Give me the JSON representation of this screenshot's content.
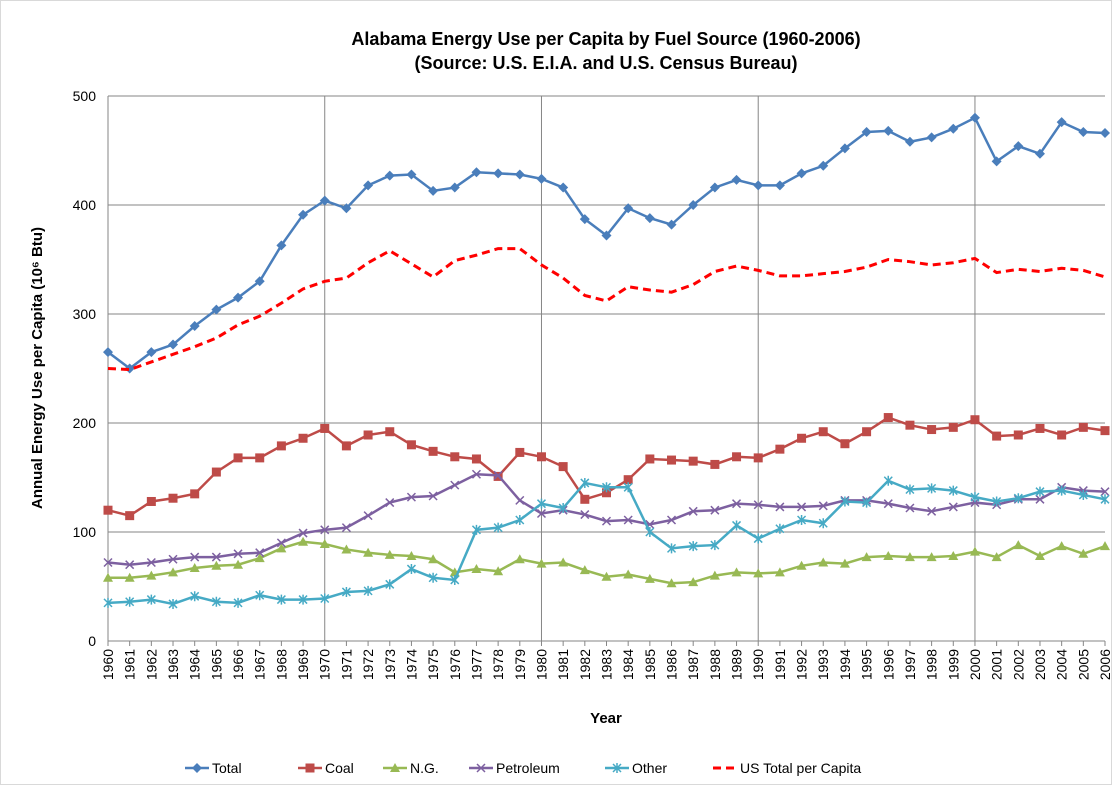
{
  "chart_data": {
    "type": "line",
    "title": [
      "Alabama Energy Use per Capita by Fuel Source (1960-2006)",
      "(Source: U.S. E.I.A. and U.S. Census Bureau)"
    ],
    "x_label": "Year",
    "y_label": "Annual Energy Use per Capita (10⁶ Btu)",
    "categories": [
      "1960",
      "1961",
      "1962",
      "1963",
      "1964",
      "1965",
      "1966",
      "1967",
      "1968",
      "1969",
      "1970",
      "1971",
      "1972",
      "1973",
      "1974",
      "1975",
      "1976",
      "1977",
      "1978",
      "1979",
      "1980",
      "1981",
      "1982",
      "1983",
      "1984",
      "1985",
      "1986",
      "1987",
      "1988",
      "1989",
      "1990",
      "1991",
      "1992",
      "1993",
      "1994",
      "1995",
      "1996",
      "1997",
      "1998",
      "1999",
      "2000",
      "2001",
      "2002",
      "2003",
      "2004",
      "2005",
      "2006"
    ],
    "ylim": [
      0,
      500
    ],
    "yticks": [
      0,
      100,
      200,
      300,
      400,
      500
    ],
    "grid": true,
    "legend": "bottom",
    "series": [
      {
        "name": "Total",
        "color": "#4a7ebb",
        "marker": "diamond",
        "values": [
          265,
          250,
          265,
          272,
          289,
          304,
          315,
          330,
          363,
          391,
          404,
          397,
          418,
          427,
          428,
          413,
          416,
          430,
          429,
          428,
          424,
          416,
          387,
          372,
          397,
          388,
          382,
          400,
          416,
          423,
          418,
          418,
          429,
          436,
          452,
          467,
          468,
          458,
          462,
          470,
          480,
          440,
          454,
          447,
          476,
          467,
          466
        ]
      },
      {
        "name": "Coal",
        "color": "#be4b48",
        "marker": "square",
        "values": [
          120,
          115,
          128,
          131,
          135,
          155,
          168,
          168,
          179,
          186,
          195,
          179,
          189,
          192,
          180,
          174,
          169,
          167,
          151,
          173,
          169,
          160,
          130,
          136,
          148,
          167,
          166,
          165,
          162,
          169,
          168,
          176,
          186,
          192,
          181,
          192,
          205,
          198,
          194,
          196,
          203,
          188,
          189,
          195,
          189,
          196,
          193
        ]
      },
      {
        "name": "N.G.",
        "color": "#98b954",
        "marker": "triangle",
        "values": [
          58,
          58,
          60,
          63,
          67,
          69,
          70,
          76,
          85,
          91,
          89,
          84,
          81,
          79,
          78,
          75,
          63,
          66,
          64,
          75,
          71,
          72,
          65,
          59,
          61,
          57,
          53,
          54,
          60,
          63,
          62,
          63,
          69,
          72,
          71,
          77,
          78,
          77,
          77,
          78,
          82,
          77,
          88,
          78,
          87,
          80,
          87
        ]
      },
      {
        "name": "Petroleum",
        "color": "#7d60a0",
        "marker": "x",
        "values": [
          72,
          70,
          72,
          75,
          77,
          77,
          80,
          81,
          90,
          99,
          102,
          104,
          115,
          127,
          132,
          133,
          143,
          153,
          152,
          129,
          117,
          120,
          116,
          110,
          111,
          107,
          111,
          119,
          120,
          126,
          125,
          123,
          123,
          124,
          129,
          129,
          126,
          122,
          119,
          123,
          127,
          125,
          130,
          130,
          141,
          138,
          137
        ]
      },
      {
        "name": "Other",
        "color": "#46aac5",
        "marker": "star",
        "values": [
          35,
          36,
          38,
          34,
          41,
          36,
          35,
          42,
          38,
          38,
          39,
          45,
          46,
          52,
          66,
          58,
          56,
          102,
          104,
          111,
          126,
          122,
          145,
          141,
          141,
          100,
          85,
          87,
          88,
          106,
          94,
          103,
          111,
          108,
          128,
          127,
          147,
          139,
          140,
          138,
          132,
          128,
          131,
          137,
          138,
          134,
          130
        ]
      },
      {
        "name": "US Total per Capita",
        "color": "#ff0000",
        "marker": "none",
        "dashed": true,
        "values": [
          250,
          249,
          256,
          263,
          270,
          278,
          290,
          298,
          310,
          323,
          330,
          333,
          347,
          358,
          346,
          334,
          349,
          354,
          360,
          360,
          345,
          333,
          317,
          312,
          325,
          322,
          320,
          327,
          339,
          344,
          340,
          335,
          335,
          337,
          339,
          343,
          350,
          348,
          345,
          347,
          351,
          338,
          341,
          339,
          342,
          340,
          334
        ]
      }
    ]
  }
}
